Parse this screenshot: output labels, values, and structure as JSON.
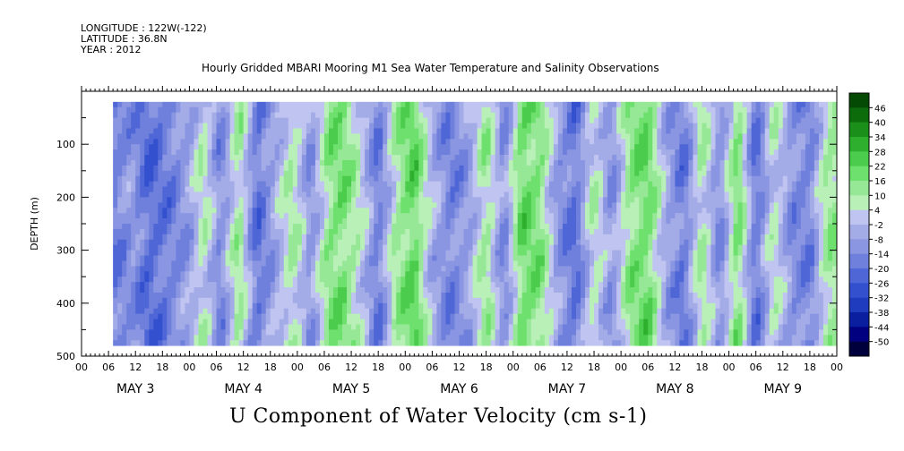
{
  "header": {
    "longitude": "LONGITUDE : 122W(-122)",
    "latitude": "LATITUDE : 36.8N",
    "year": "YEAR : 2012"
  },
  "title": "Hourly Gridded MBARI Mooring M1 Sea Water Temperature and Salinity Observations",
  "variable_title": "U Component of Water Velocity (cm s-1)",
  "chart_data": {
    "type": "heatmap",
    "title": "Hourly Gridded MBARI Mooring M1 Sea Water Temperature and Salinity Observations",
    "subtitle": "U Component of Water Velocity (cm s-1)",
    "ylabel": "DEPTH (m)",
    "xlabel": "",
    "x_hours_range": [
      0,
      168
    ],
    "x_hour_ticks": [
      "00",
      "06",
      "12",
      "18",
      "00",
      "06",
      "12",
      "18",
      "00",
      "06",
      "12",
      "18",
      "00",
      "06",
      "12",
      "18",
      "00",
      "06",
      "12",
      "18",
      "00",
      "06",
      "12",
      "18",
      "00",
      "06",
      "12",
      "18",
      "00"
    ],
    "x_day_labels": [
      "MAY 3",
      "MAY 4",
      "MAY 5",
      "MAY 6",
      "MAY 7",
      "MAY 8",
      "MAY 9"
    ],
    "ylim": [
      500,
      0
    ],
    "y_ticks": [
      100,
      200,
      300,
      400,
      500
    ],
    "data_depth_range": [
      20,
      480
    ],
    "data_hours_range": [
      7,
      168
    ],
    "colorbar": {
      "levels": [
        -50,
        -44,
        -38,
        -32,
        -26,
        -20,
        -14,
        -8,
        -2,
        4,
        10,
        16,
        22,
        28,
        34,
        40,
        46
      ],
      "labels": [
        "46",
        "40",
        "34",
        "28",
        "22",
        "16",
        "10",
        "4",
        "-2",
        "-8",
        "-14",
        "-20",
        "-26",
        "-32",
        "-38",
        "-44",
        "-50"
      ],
      "colors": [
        "#00003c",
        "#000080",
        "#0a1fa0",
        "#1f3cbf",
        "#3350cf",
        "#4f66d6",
        "#6f80dc",
        "#8a96e2",
        "#a4ace8",
        "#c0c4f0",
        "#b8f0b8",
        "#96e896",
        "#6ee06e",
        "#4ccc4c",
        "#2eb02e",
        "#1a901a",
        "#0c6c0c",
        "#044a04"
      ]
    },
    "bands": [
      {
        "hour": 7,
        "u": -18
      },
      {
        "hour": 11,
        "u": -10
      },
      {
        "hour": 15,
        "u": -22
      },
      {
        "hour": 20,
        "u": -16
      },
      {
        "hour": 24,
        "u": -8
      },
      {
        "hour": 27,
        "u": 8
      },
      {
        "hour": 31,
        "u": -14
      },
      {
        "hour": 35,
        "u": 12
      },
      {
        "hour": 39,
        "u": -20
      },
      {
        "hour": 43,
        "u": -6
      },
      {
        "hour": 47,
        "u": 10
      },
      {
        "hour": 51,
        "u": -12
      },
      {
        "hour": 55,
        "u": 14
      },
      {
        "hour": 58,
        "u": 18
      },
      {
        "hour": 62,
        "u": 4
      },
      {
        "hour": 66,
        "u": -18
      },
      {
        "hour": 70,
        "u": 10
      },
      {
        "hour": 74,
        "u": 22
      },
      {
        "hour": 78,
        "u": -4
      },
      {
        "hour": 82,
        "u": -16
      },
      {
        "hour": 86,
        "u": -8
      },
      {
        "hour": 90,
        "u": 12
      },
      {
        "hour": 94,
        "u": -14
      },
      {
        "hour": 98,
        "u": 20
      },
      {
        "hour": 102,
        "u": 16
      },
      {
        "hour": 106,
        "u": -10
      },
      {
        "hour": 110,
        "u": -20
      },
      {
        "hour": 114,
        "u": 8
      },
      {
        "hour": 118,
        "u": -12
      },
      {
        "hour": 122,
        "u": 14
      },
      {
        "hour": 126,
        "u": 20
      },
      {
        "hour": 130,
        "u": -6
      },
      {
        "hour": 134,
        "u": -18
      },
      {
        "hour": 138,
        "u": 10
      },
      {
        "hour": 142,
        "u": -14
      },
      {
        "hour": 146,
        "u": 18
      },
      {
        "hour": 150,
        "u": -20
      },
      {
        "hour": 154,
        "u": 6
      },
      {
        "hour": 158,
        "u": -12
      },
      {
        "hour": 162,
        "u": -16
      },
      {
        "hour": 166,
        "u": 12
      }
    ]
  }
}
